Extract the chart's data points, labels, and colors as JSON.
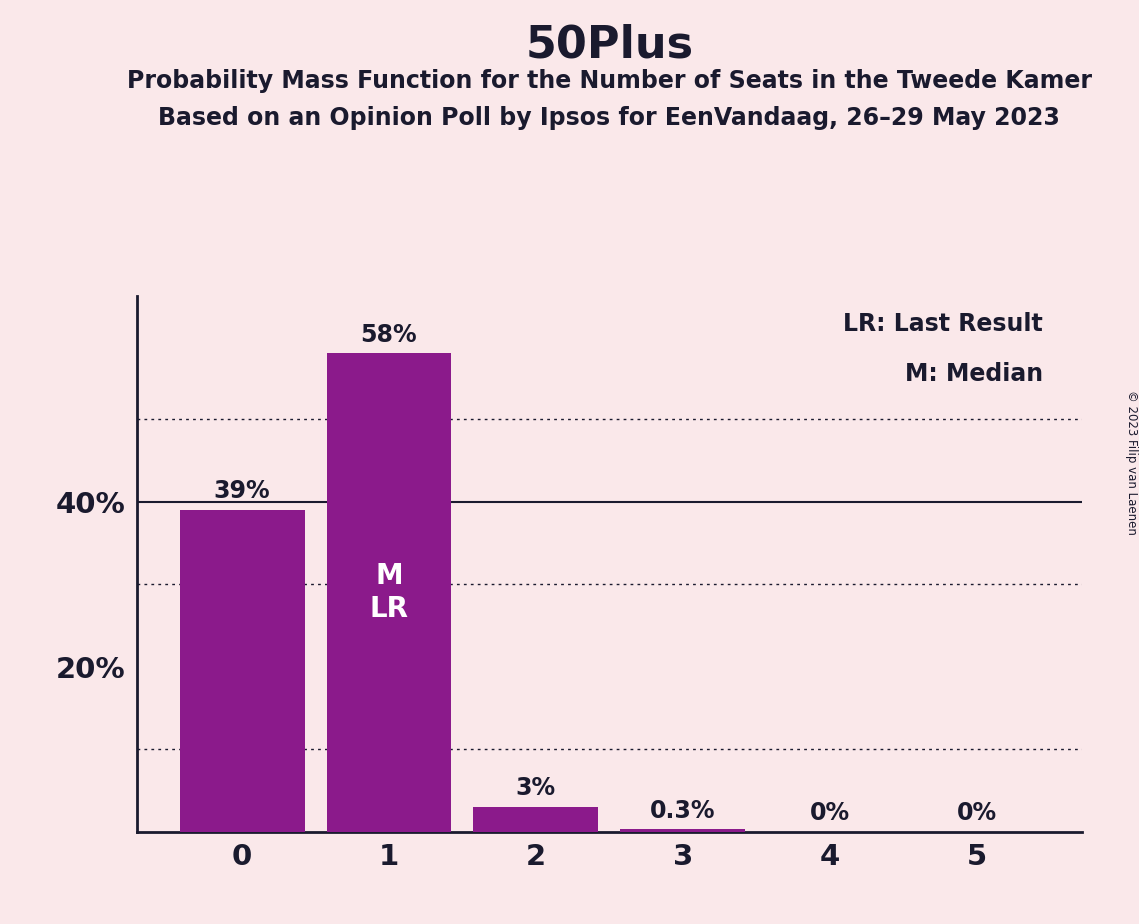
{
  "title": "50Plus",
  "subtitle1": "Probability Mass Function for the Number of Seats in the Tweede Kamer",
  "subtitle2": "Based on an Opinion Poll by Ipsos for EenVandaag, 26–29 May 2023",
  "copyright": "© 2023 Filip van Laenen",
  "categories": [
    0,
    1,
    2,
    3,
    4,
    5
  ],
  "values": [
    39,
    58,
    3,
    0.3,
    0,
    0
  ],
  "bar_color": "#8B1A8B",
  "background_color": "#FAE8EA",
  "text_color": "#1a1a2e",
  "ylabel_ticks": [
    "20%",
    "40%"
  ],
  "ytick_values": [
    20,
    40
  ],
  "ylim": [
    0,
    65
  ],
  "median_seat": 1,
  "last_result_seat": 1,
  "legend_lr": "LR: Last Result",
  "legend_m": "M: Median",
  "bar_labels": [
    "39%",
    "58%",
    "3%",
    "0.3%",
    "0%",
    "0%"
  ],
  "dotted_lines": [
    10,
    30,
    50
  ],
  "solid_lines": [
    40
  ],
  "title_fontsize": 32,
  "subtitle_fontsize": 17,
  "tick_fontsize": 21,
  "label_fontsize": 17,
  "legend_fontsize": 17,
  "mlr_fontsize": 20
}
